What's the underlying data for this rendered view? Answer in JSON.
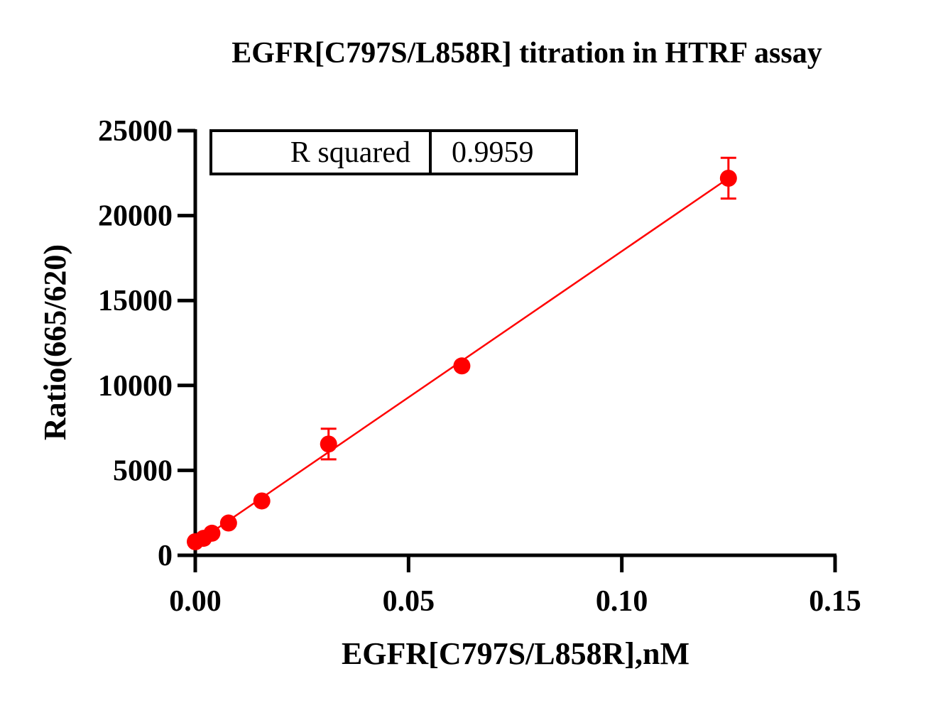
{
  "chart_data": {
    "type": "scatter",
    "title": "EGFR[C797S/L858R] titration in HTRF assay",
    "xlabel": "EGFR[C797S/L858R],nM",
    "ylabel": "Ratio(665/620)",
    "xlim": [
      0,
      0.15
    ],
    "ylim": [
      0,
      25000
    ],
    "xticks": [
      "0.00",
      "0.05",
      "0.10",
      "0.15"
    ],
    "yticks": [
      "0",
      "5000",
      "10000",
      "15000",
      "20000",
      "25000"
    ],
    "points": [
      {
        "x": 0.0,
        "y": 800,
        "err": 0
      },
      {
        "x": 0.00195,
        "y": 1000,
        "err": 0
      },
      {
        "x": 0.0039,
        "y": 1300,
        "err": 0
      },
      {
        "x": 0.0078,
        "y": 1900,
        "err": 0
      },
      {
        "x": 0.0156,
        "y": 3200,
        "err": 0
      },
      {
        "x": 0.03125,
        "y": 6550,
        "err": 900
      },
      {
        "x": 0.0625,
        "y": 11150,
        "err": 0
      },
      {
        "x": 0.125,
        "y": 22200,
        "err": 1200
      }
    ],
    "fit_line": {
      "x": [
        0.0,
        0.125
      ],
      "y": [
        700,
        22200
      ]
    },
    "series_color": "#ff0000",
    "grid": false,
    "stats_table": {
      "label": "R squared",
      "value": "0.9959"
    }
  }
}
